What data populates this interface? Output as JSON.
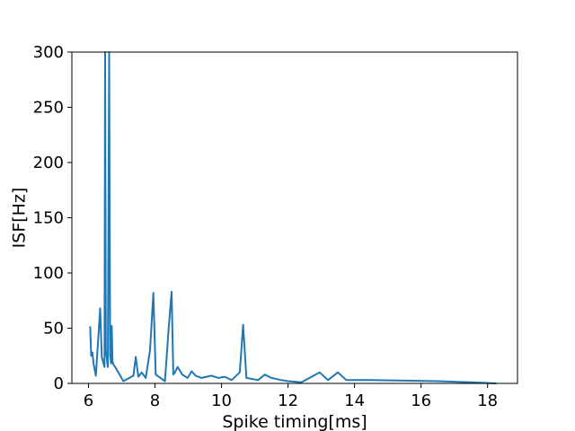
{
  "chart_data": {
    "type": "line",
    "title": "",
    "xlabel": "Spike timing[ms]",
    "ylabel": "ISF[Hz]",
    "xlim": [
      5.5,
      18.9
    ],
    "ylim": [
      0,
      300
    ],
    "xticks": [
      6,
      8,
      10,
      12,
      14,
      16,
      18
    ],
    "yticks": [
      0,
      50,
      100,
      150,
      200,
      250,
      300
    ],
    "grid": false,
    "legend": "none",
    "series_color": "#1f77b4",
    "series": [
      {
        "x": [
          6.05,
          6.08,
          6.12,
          6.15,
          6.22,
          6.35,
          6.4,
          6.48,
          6.5,
          6.52,
          6.58,
          6.62,
          6.65,
          6.68,
          6.7,
          6.72,
          6.75,
          6.8,
          7.05,
          7.35,
          7.42,
          7.5,
          7.6,
          7.72,
          7.85,
          7.95,
          8.02,
          8.3,
          8.4,
          8.5,
          8.55,
          8.6,
          8.68,
          8.82,
          8.98,
          9.1,
          9.22,
          9.4,
          9.7,
          9.9,
          10.1,
          10.3,
          10.55,
          10.65,
          10.75,
          11.1,
          11.3,
          11.5,
          11.8,
          12.0,
          12.4,
          12.95,
          13.2,
          13.5,
          13.75,
          14.5,
          15.5,
          16.5,
          17.5,
          18.25
        ],
        "y": [
          51,
          25,
          28,
          18,
          7,
          68,
          24,
          15,
          300,
          30,
          15,
          300,
          25,
          18,
          52,
          20,
          17,
          15,
          2,
          7,
          24,
          6,
          10,
          5,
          30,
          82,
          8,
          2,
          45,
          83,
          8,
          10,
          15,
          8,
          5,
          11,
          7,
          5,
          7,
          5,
          6,
          3,
          10,
          53,
          5,
          3,
          8,
          5,
          3,
          2,
          1,
          10,
          3,
          10,
          3,
          3,
          2.5,
          2,
          1,
          0
        ]
      }
    ]
  }
}
